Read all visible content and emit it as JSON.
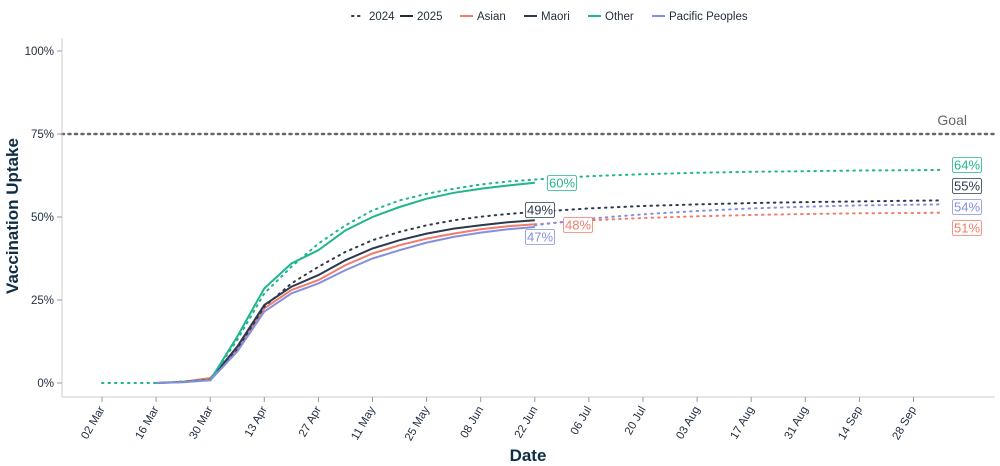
{
  "chart_data": {
    "type": "line",
    "xlabel": "Date",
    "ylabel": "Vaccination Uptake",
    "x_ticks": [
      "02 Mar",
      "16 Mar",
      "30 Mar",
      "13 Apr",
      "27 Apr",
      "11 May",
      "25 May",
      "08 Jun",
      "22 Jun",
      "06 Jul",
      "20 Jul",
      "03 Aug",
      "17 Aug",
      "31 Aug",
      "14 Sep",
      "28 Sep"
    ],
    "y_ticks": [
      "0%",
      "25%",
      "50%",
      "75%",
      "100%"
    ],
    "ylim": [
      0,
      100
    ],
    "y_unit": "%",
    "goal": {
      "label": "Goal",
      "value": 75
    },
    "line_style_legend": [
      {
        "label": "2024",
        "style": "dotted"
      },
      {
        "label": "2025",
        "style": "solid"
      }
    ],
    "series": [
      {
        "name": "Asian",
        "color": "#f07c6a",
        "points_2025": [
          [
            "16 Mar",
            0
          ],
          [
            "23 Mar",
            0.4
          ],
          [
            "30 Mar",
            1.5
          ],
          [
            "06 Apr",
            10
          ],
          [
            "13 Apr",
            22.5
          ],
          [
            "20 Apr",
            28
          ],
          [
            "27 Apr",
            31
          ],
          [
            "04 May",
            35.5
          ],
          [
            "11 May",
            39
          ],
          [
            "18 May",
            41.5
          ],
          [
            "25 May",
            43.5
          ],
          [
            "01 Jun",
            45
          ],
          [
            "08 Jun",
            46.3
          ],
          [
            "15 Jun",
            47.2
          ],
          [
            "22 Jun",
            47.8
          ]
        ],
        "points_2024": [
          [
            "22 Jun",
            47.8
          ],
          [
            "06 Jul",
            49
          ],
          [
            "20 Jul",
            49.7
          ],
          [
            "03 Aug",
            50.2
          ],
          [
            "17 Aug",
            50.6
          ],
          [
            "31 Aug",
            50.9
          ],
          [
            "14 Sep",
            51.1
          ],
          [
            "28 Sep",
            51.2
          ],
          [
            "05 Oct",
            51.3
          ]
        ],
        "labels": [
          "48%",
          "51%"
        ]
      },
      {
        "name": "Maori",
        "color": "#2b3a4e",
        "points_2025": [
          [
            "16 Mar",
            0
          ],
          [
            "23 Mar",
            0.3
          ],
          [
            "30 Mar",
            1
          ],
          [
            "06 Apr",
            11
          ],
          [
            "13 Apr",
            23.5
          ],
          [
            "20 Apr",
            29
          ],
          [
            "27 Apr",
            32.5
          ],
          [
            "04 May",
            37
          ],
          [
            "11 May",
            40.5
          ],
          [
            "18 May",
            43
          ],
          [
            "25 May",
            45
          ],
          [
            "01 Jun",
            46.5
          ],
          [
            "08 Jun",
            47.5
          ],
          [
            "15 Jun",
            48.4
          ],
          [
            "22 Jun",
            49
          ]
        ],
        "points_2024": [
          [
            "30 Mar",
            0.8
          ],
          [
            "06 Apr",
            10
          ],
          [
            "13 Apr",
            23
          ],
          [
            "20 Apr",
            30
          ],
          [
            "27 Apr",
            35
          ],
          [
            "04 May",
            39.5
          ],
          [
            "11 May",
            43
          ],
          [
            "18 May",
            45.5
          ],
          [
            "25 May",
            47.5
          ],
          [
            "01 Jun",
            49
          ],
          [
            "08 Jun",
            50.1
          ],
          [
            "15 Jun",
            50.9
          ],
          [
            "22 Jun",
            51.5
          ],
          [
            "06 Jul",
            52.6
          ],
          [
            "20 Jul",
            53.3
          ],
          [
            "03 Aug",
            53.8
          ],
          [
            "17 Aug",
            54.2
          ],
          [
            "31 Aug",
            54.5
          ],
          [
            "14 Sep",
            54.7
          ],
          [
            "28 Sep",
            54.9
          ],
          [
            "05 Oct",
            55
          ]
        ],
        "labels": [
          "49%",
          "55%"
        ]
      },
      {
        "name": "Other",
        "color": "#1fb58f",
        "points_2025": [
          [
            "30 Mar",
            0.8
          ],
          [
            "06 Apr",
            14
          ],
          [
            "13 Apr",
            28.5
          ],
          [
            "20 Apr",
            36
          ],
          [
            "27 Apr",
            40
          ],
          [
            "04 May",
            46
          ],
          [
            "11 May",
            50
          ],
          [
            "18 May",
            53
          ],
          [
            "25 May",
            55.5
          ],
          [
            "01 Jun",
            57.3
          ],
          [
            "08 Jun",
            58.5
          ],
          [
            "15 Jun",
            59.5
          ],
          [
            "22 Jun",
            60.3
          ]
        ],
        "points_2024": [
          [
            "02 Mar",
            0
          ],
          [
            "09 Mar",
            0
          ],
          [
            "16 Mar",
            0
          ],
          [
            "30 Mar",
            1
          ],
          [
            "06 Apr",
            13
          ],
          [
            "13 Apr",
            27
          ],
          [
            "20 Apr",
            35
          ],
          [
            "27 Apr",
            42
          ],
          [
            "04 May",
            47.5
          ],
          [
            "11 May",
            52
          ],
          [
            "18 May",
            55
          ],
          [
            "25 May",
            57
          ],
          [
            "01 Jun",
            58.5
          ],
          [
            "08 Jun",
            59.8
          ],
          [
            "15 Jun",
            60.7
          ],
          [
            "22 Jun",
            61.3
          ],
          [
            "06 Jul",
            62.3
          ],
          [
            "20 Jul",
            62.9
          ],
          [
            "03 Aug",
            63.3
          ],
          [
            "17 Aug",
            63.6
          ],
          [
            "31 Aug",
            63.8
          ],
          [
            "14 Sep",
            64
          ],
          [
            "28 Sep",
            64.1
          ],
          [
            "05 Oct",
            64.2
          ]
        ],
        "labels": [
          "60%",
          "64%"
        ]
      },
      {
        "name": "Pacific Peoples",
        "color": "#8590dd",
        "points_2025": [
          [
            "16 Mar",
            0
          ],
          [
            "23 Mar",
            0.2
          ],
          [
            "30 Mar",
            0.8
          ],
          [
            "06 Apr",
            9.5
          ],
          [
            "13 Apr",
            21.5
          ],
          [
            "20 Apr",
            27
          ],
          [
            "27 Apr",
            30
          ],
          [
            "04 May",
            34
          ],
          [
            "11 May",
            37.5
          ],
          [
            "18 May",
            40
          ],
          [
            "25 May",
            42.3
          ],
          [
            "01 Jun",
            44
          ],
          [
            "08 Jun",
            45.3
          ],
          [
            "15 Jun",
            46.3
          ],
          [
            "22 Jun",
            47
          ]
        ],
        "points_2024": [
          [
            "22 Jun",
            47.5
          ],
          [
            "06 Jul",
            49.5
          ],
          [
            "20 Jul",
            50.8
          ],
          [
            "03 Aug",
            51.8
          ],
          [
            "17 Aug",
            52.6
          ],
          [
            "31 Aug",
            53.1
          ],
          [
            "14 Sep",
            53.5
          ],
          [
            "28 Sep",
            53.7
          ],
          [
            "05 Oct",
            53.8
          ]
        ],
        "labels": [
          "47%",
          "54%"
        ]
      }
    ]
  }
}
